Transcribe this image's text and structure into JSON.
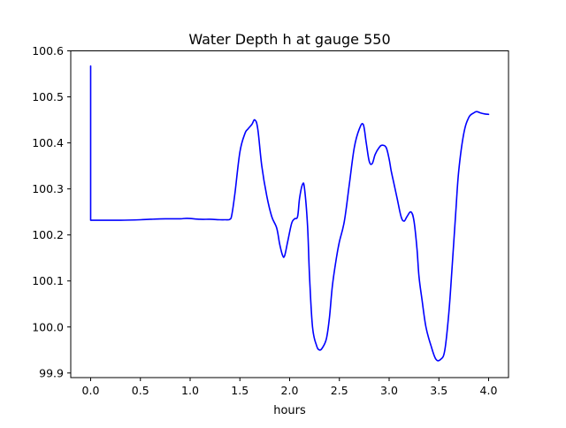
{
  "chart_data": {
    "type": "line",
    "title": "Water Depth h at gauge 550",
    "xlabel": "hours",
    "ylabel": "",
    "xlim": [
      -0.2,
      4.2
    ],
    "ylim": [
      99.89,
      100.6
    ],
    "xticks": [
      0.0,
      0.5,
      1.0,
      1.5,
      2.0,
      2.5,
      3.0,
      3.5,
      4.0
    ],
    "xtick_labels": [
      "0.0",
      "0.5",
      "1.0",
      "1.5",
      "2.0",
      "2.5",
      "3.0",
      "3.5",
      "4.0"
    ],
    "yticks": [
      99.9,
      100.0,
      100.1,
      100.2,
      100.3,
      100.4,
      100.5,
      100.6
    ],
    "ytick_labels": [
      "99.9",
      "100.0",
      "100.1",
      "100.2",
      "100.3",
      "100.4",
      "100.5",
      "100.6"
    ],
    "grid": false,
    "legend": "none",
    "series": [
      {
        "color": "#0000ff",
        "x": [
          0.0,
          0.0,
          0.0,
          0.1,
          0.3,
          0.5,
          0.6,
          0.75,
          0.9,
          0.97,
          1.1,
          1.2,
          1.3,
          1.35,
          1.4,
          1.42,
          1.45,
          1.5,
          1.55,
          1.58,
          1.62,
          1.65,
          1.68,
          1.72,
          1.77,
          1.82,
          1.87,
          1.9,
          1.93,
          1.95,
          1.98,
          2.02,
          2.05,
          2.08,
          2.1,
          2.13,
          2.15,
          2.18,
          2.2,
          2.23,
          2.27,
          2.3,
          2.33,
          2.37,
          2.4,
          2.43,
          2.47,
          2.5,
          2.55,
          2.6,
          2.65,
          2.7,
          2.74,
          2.77,
          2.8,
          2.83,
          2.86,
          2.9,
          2.93,
          2.97,
          3.0,
          3.02,
          3.05,
          3.08,
          3.12,
          3.15,
          3.18,
          3.22,
          3.25,
          3.28,
          3.3,
          3.33,
          3.37,
          3.42,
          3.47,
          3.52,
          3.56,
          3.6,
          3.63,
          3.67,
          3.7,
          3.75,
          3.8,
          3.85,
          3.88,
          3.92,
          3.96,
          4.0
        ],
        "y": [
          100.232,
          100.567,
          100.232,
          100.232,
          100.232,
          100.233,
          100.234,
          100.235,
          100.235,
          100.236,
          100.234,
          100.234,
          100.233,
          100.233,
          100.234,
          100.245,
          100.29,
          100.38,
          100.42,
          100.43,
          100.44,
          100.45,
          100.43,
          100.35,
          100.285,
          100.24,
          100.215,
          100.18,
          100.155,
          100.155,
          100.185,
          100.225,
          100.235,
          100.24,
          100.28,
          100.31,
          100.3,
          100.22,
          100.11,
          100.0,
          99.96,
          99.95,
          99.955,
          99.975,
          100.02,
          100.09,
          100.15,
          100.185,
          100.23,
          100.31,
          100.39,
          100.43,
          100.44,
          100.4,
          100.36,
          100.355,
          100.375,
          100.39,
          100.395,
          100.39,
          100.365,
          100.34,
          100.31,
          100.28,
          100.24,
          100.23,
          100.24,
          100.25,
          100.23,
          100.17,
          100.11,
          100.06,
          100.0,
          99.96,
          99.93,
          99.93,
          99.95,
          100.03,
          100.12,
          100.25,
          100.34,
          100.42,
          100.455,
          100.465,
          100.468,
          100.465,
          100.463,
          100.462
        ]
      }
    ]
  }
}
